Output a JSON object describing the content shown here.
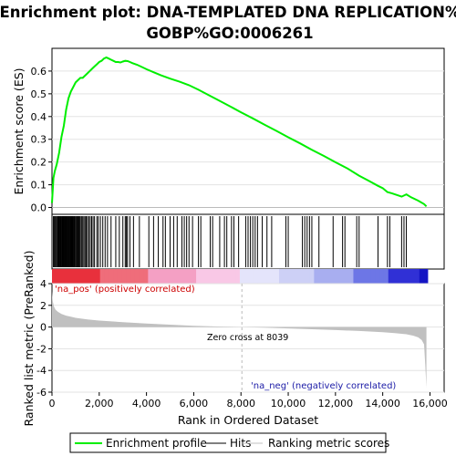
{
  "chart_data": {
    "type": "line",
    "title_line1": "Enrichment plot: DNA-TEMPLATED DNA REPLICATION%",
    "title_line2": "GOBP%GO:0006261",
    "xlabel": "Rank in Ordered Dataset",
    "ylabel_top": "Enrichment score (ES)",
    "ylabel_bottom": "Ranked list metric (PreRanked)",
    "x_range": [
      0,
      16600
    ],
    "x_ticks": [
      0,
      2000,
      4000,
      6000,
      8000,
      10000,
      12000,
      14000,
      16000
    ],
    "x_tick_labels": [
      "0",
      "2,000",
      "4,000",
      "6,000",
      "8,000",
      "10,000",
      "12,000",
      "14,000",
      "16,000"
    ],
    "es_ylim": [
      -0.03,
      0.7
    ],
    "es_ticks": [
      0.0,
      0.1,
      0.2,
      0.3,
      0.4,
      0.5,
      0.6
    ],
    "es_tick_labels": [
      "0.0",
      "0.1",
      "0.2",
      "0.3",
      "0.4",
      "0.5",
      "0.6"
    ],
    "metric_ylim": [
      -6,
      4
    ],
    "metric_ticks": [
      4,
      2,
      0,
      -2,
      -4,
      -6
    ],
    "metric_tick_labels": [
      "4",
      "2",
      "0",
      "-2",
      "-4",
      "-6"
    ],
    "series": [
      {
        "name": "Enrichment profile",
        "color": "#00ee00",
        "x": [
          0,
          60,
          120,
          200,
          300,
          400,
          500,
          600,
          700,
          800,
          900,
          1000,
          1100,
          1200,
          1300,
          1400,
          1500,
          1600,
          1700,
          1800,
          1900,
          2000,
          2100,
          2200,
          2300,
          2400,
          2500,
          2600,
          2700,
          2800,
          2900,
          3000,
          3100,
          3200,
          3300,
          3400,
          3600,
          3800,
          4000,
          4300,
          4600,
          5000,
          5400,
          5800,
          6200,
          6600,
          7000,
          7500,
          8000,
          8500,
          9000,
          9500,
          10000,
          10500,
          11000,
          11500,
          12000,
          12500,
          13000,
          13400,
          13800,
          14000,
          14200,
          14400,
          14600,
          14800,
          15000,
          15200,
          15500,
          15750,
          15850
        ],
        "y": [
          0.02,
          0.13,
          0.16,
          0.19,
          0.24,
          0.31,
          0.36,
          0.43,
          0.48,
          0.51,
          0.53,
          0.55,
          0.56,
          0.57,
          0.57,
          0.58,
          0.59,
          0.6,
          0.61,
          0.62,
          0.63,
          0.64,
          0.645,
          0.655,
          0.66,
          0.655,
          0.65,
          0.645,
          0.64,
          0.64,
          0.638,
          0.642,
          0.645,
          0.644,
          0.64,
          0.635,
          0.628,
          0.618,
          0.608,
          0.595,
          0.582,
          0.567,
          0.553,
          0.538,
          0.518,
          0.496,
          0.474,
          0.447,
          0.419,
          0.392,
          0.364,
          0.337,
          0.309,
          0.282,
          0.254,
          0.227,
          0.199,
          0.172,
          0.14,
          0.118,
          0.095,
          0.085,
          0.068,
          0.062,
          0.055,
          0.048,
          0.058,
          0.045,
          0.03,
          0.015,
          0.005
        ]
      }
    ],
    "hits": [
      60,
      100,
      140,
      180,
      220,
      250,
      280,
      300,
      330,
      360,
      380,
      410,
      430,
      450,
      480,
      500,
      520,
      550,
      570,
      600,
      620,
      650,
      680,
      700,
      720,
      750,
      780,
      800,
      830,
      850,
      880,
      900,
      930,
      960,
      1000,
      1040,
      1080,
      1120,
      1160,
      1200,
      1250,
      1300,
      1350,
      1400,
      1450,
      1500,
      1560,
      1620,
      1680,
      1740,
      1800,
      1900,
      1960,
      2050,
      2150,
      2250,
      2350,
      2500,
      2700,
      2850,
      3000,
      3100,
      3150,
      3200,
      3300,
      3450,
      3700,
      4100,
      4300,
      4500,
      4700,
      4800,
      5000,
      5150,
      5300,
      5500,
      5600,
      5700,
      5800,
      5950,
      6200,
      6300,
      6700,
      6800,
      7100,
      7300,
      7400,
      7600,
      7700,
      7900,
      8200,
      8300,
      8400,
      8500,
      8600,
      8700,
      8900,
      9100,
      9300,
      9900,
      10000,
      10600,
      10700,
      10800,
      10900,
      11000,
      11300,
      11900,
      12300,
      12400,
      12900,
      13000,
      13800,
      14200,
      14300,
      14800,
      14900,
      15000
    ],
    "metric_curve": {
      "x": [
        0,
        30,
        80,
        150,
        250,
        400,
        600,
        800,
        1000,
        1500,
        2000,
        3000,
        4000,
        5000,
        6000,
        7000,
        8039,
        9000,
        10000,
        11000,
        12000,
        13000,
        14000,
        14500,
        15000,
        15300,
        15500,
        15650,
        15750,
        15800,
        15850
      ],
      "y": [
        3.3,
        2.4,
        1.9,
        1.6,
        1.4,
        1.2,
        1.05,
        0.95,
        0.85,
        0.7,
        0.6,
        0.45,
        0.33,
        0.22,
        0.12,
        0.05,
        0.0,
        -0.06,
        -0.13,
        -0.2,
        -0.28,
        -0.36,
        -0.48,
        -0.56,
        -0.66,
        -0.8,
        -0.95,
        -1.2,
        -1.6,
        -3.5,
        -5.6
      ]
    },
    "zero_cross": 8039,
    "annotations": {
      "pos": "'na_pos' (positively correlated)",
      "neg": "'na_neg' (negatively correlated)",
      "zero": "Zero cross at 8039"
    },
    "legend": [
      {
        "label": "Enrichment profile",
        "color": "#00ee00"
      },
      {
        "label": "Hits",
        "color": "#000000"
      },
      {
        "label": "Ranking metric scores",
        "color": "#c0c0c0"
      }
    ]
  }
}
